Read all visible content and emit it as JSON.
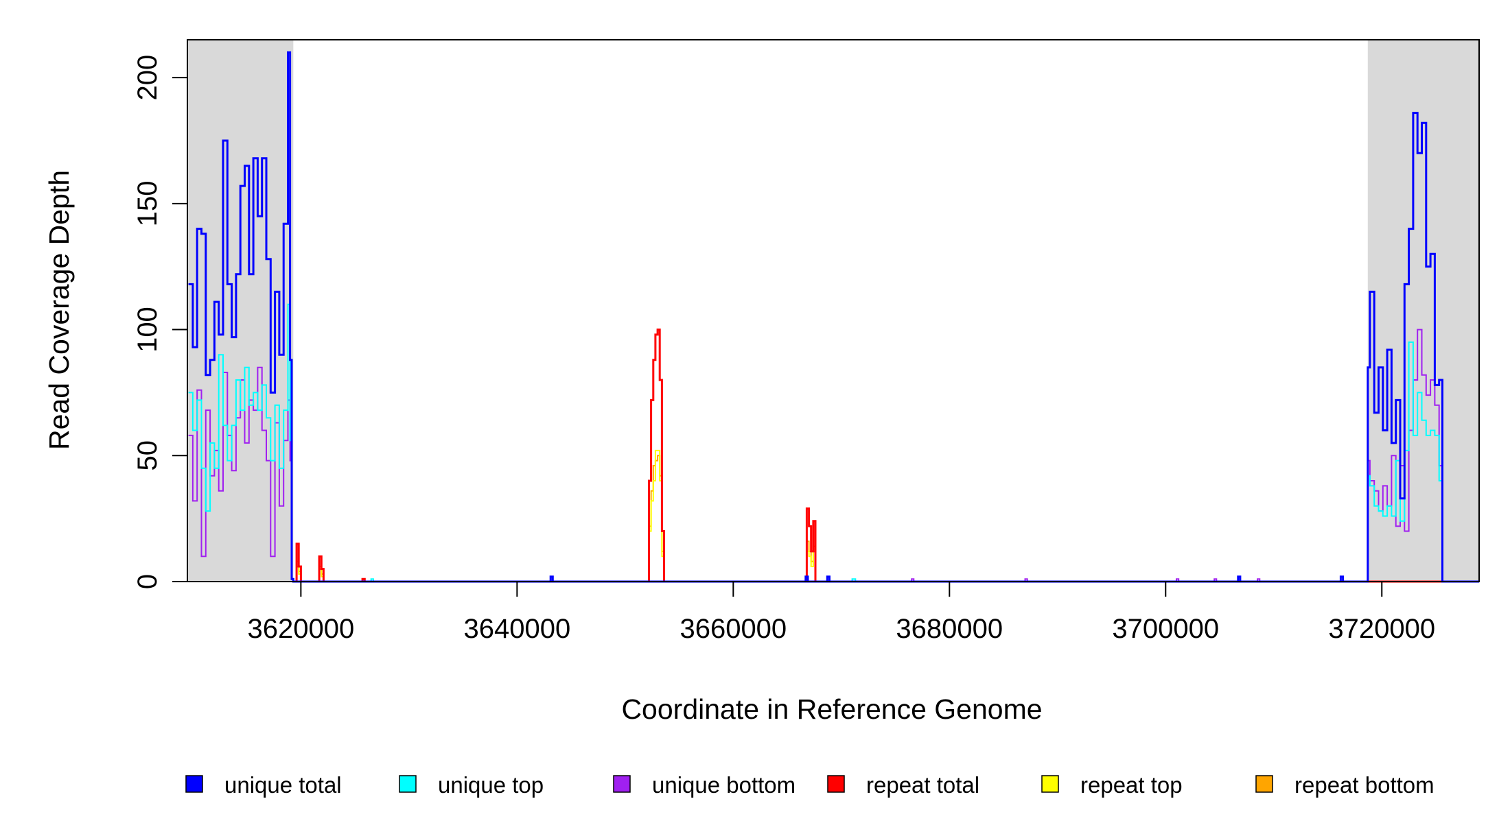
{
  "chart_data": {
    "type": "line",
    "title": "",
    "xlabel": "Coordinate in Reference Genome",
    "ylabel": "Read Coverage Depth",
    "xlim": [
      3609500,
      3729000
    ],
    "ylim": [
      0,
      215
    ],
    "x_ticks": [
      3620000,
      3640000,
      3660000,
      3680000,
      3700000,
      3720000
    ],
    "x_tick_labels": [
      "3620000",
      "3640000",
      "3660000",
      "3680000",
      "3700000",
      "3720000"
    ],
    "y_ticks": [
      0,
      50,
      100,
      150,
      200
    ],
    "y_tick_labels": [
      "0",
      "50",
      "100",
      "150",
      "200"
    ],
    "grid": false,
    "legend_position": "bottom",
    "shaded_regions": [
      {
        "x0": 3609500,
        "x1": 3619300,
        "color": "#d9d9d9"
      },
      {
        "x0": 3718700,
        "x1": 3729000,
        "color": "#d9d9d9"
      }
    ],
    "series": [
      {
        "name": "unique total",
        "color": "#0000ff",
        "x": [
          3609600,
          3610000,
          3610400,
          3610800,
          3611200,
          3611600,
          3612000,
          3612400,
          3612800,
          3613200,
          3613600,
          3614000,
          3614400,
          3614800,
          3615200,
          3615600,
          3616000,
          3616400,
          3616800,
          3617200,
          3617600,
          3618000,
          3618400,
          3618800,
          3619000,
          3619150,
          3619300,
          3620000,
          3630000,
          3642900,
          3643100,
          3643300,
          3652000,
          3666500,
          3666700,
          3666900,
          3668500,
          3668700,
          3668900,
          3690000,
          3706500,
          3706700,
          3706900,
          3716000,
          3716200,
          3716400,
          3718700,
          3718900,
          3719300,
          3719700,
          3720100,
          3720500,
          3720900,
          3721300,
          3721700,
          3722100,
          3722500,
          3722900,
          3723300,
          3723700,
          3724100,
          3724500,
          3724900,
          3725300,
          3725600,
          3725800,
          3726500,
          3729000
        ],
        "values": [
          118,
          93,
          140,
          138,
          82,
          88,
          111,
          98,
          175,
          118,
          97,
          122,
          157,
          165,
          122,
          168,
          145,
          168,
          128,
          75,
          115,
          90,
          142,
          210,
          88,
          1,
          0,
          0,
          0,
          0,
          2,
          0,
          0,
          0,
          2,
          0,
          0,
          2,
          0,
          0,
          0,
          2,
          0,
          0,
          2,
          0,
          85,
          115,
          67,
          85,
          60,
          92,
          55,
          72,
          33,
          118,
          140,
          186,
          170,
          182,
          125,
          130,
          78,
          80,
          0,
          0,
          0,
          0
        ]
      },
      {
        "name": "unique top",
        "color": "#00ffff",
        "x": [
          3609600,
          3610000,
          3610400,
          3610800,
          3611200,
          3611600,
          3612000,
          3612400,
          3612800,
          3613200,
          3613600,
          3614000,
          3614400,
          3614800,
          3615200,
          3615600,
          3616000,
          3616400,
          3616800,
          3617200,
          3617600,
          3618000,
          3618400,
          3618800,
          3619000,
          3619150,
          3619300,
          3626500,
          3626700,
          3671000,
          3671300,
          3718700,
          3718900,
          3719300,
          3719700,
          3720100,
          3720500,
          3720900,
          3721300,
          3721700,
          3722100,
          3722500,
          3722900,
          3723300,
          3723700,
          3724100,
          3724500,
          3724900,
          3725300,
          3725600,
          3725800,
          3729000
        ],
        "values": [
          75,
          60,
          72,
          45,
          28,
          55,
          45,
          90,
          62,
          48,
          62,
          80,
          68,
          85,
          70,
          75,
          68,
          78,
          65,
          48,
          70,
          45,
          68,
          110,
          56,
          1,
          0,
          1,
          0,
          1,
          0,
          42,
          38,
          30,
          28,
          26,
          30,
          26,
          48,
          24,
          52,
          95,
          58,
          75,
          64,
          58,
          60,
          58,
          40,
          0,
          0,
          0
        ]
      },
      {
        "name": "unique bottom",
        "color": "#a020f0",
        "x": [
          3609600,
          3610000,
          3610400,
          3610800,
          3611200,
          3611600,
          3612000,
          3612400,
          3612800,
          3613200,
          3613600,
          3614000,
          3614400,
          3614800,
          3615200,
          3615600,
          3616000,
          3616400,
          3616800,
          3617200,
          3617600,
          3618000,
          3618400,
          3618800,
          3619000,
          3619150,
          3619300,
          3676500,
          3676700,
          3687000,
          3687200,
          3701000,
          3701200,
          3704500,
          3704700,
          3708500,
          3708700,
          3718700,
          3718900,
          3719300,
          3719700,
          3720100,
          3720500,
          3720900,
          3721300,
          3721700,
          3722100,
          3722500,
          3722900,
          3723300,
          3723700,
          3724100,
          3724500,
          3724900,
          3725300,
          3725600,
          3725800,
          3729000
        ],
        "values": [
          58,
          32,
          76,
          10,
          68,
          42,
          52,
          36,
          83,
          58,
          44,
          65,
          80,
          55,
          72,
          68,
          85,
          60,
          48,
          10,
          63,
          30,
          56,
          72,
          48,
          1,
          0,
          1,
          0,
          1,
          0,
          1,
          0,
          1,
          0,
          1,
          0,
          48,
          40,
          36,
          28,
          38,
          30,
          50,
          22,
          46,
          20,
          60,
          80,
          100,
          82,
          74,
          80,
          70,
          46,
          0,
          0,
          0
        ]
      },
      {
        "name": "repeat total",
        "color": "#ff0000",
        "x": [
          3619300,
          3619600,
          3619800,
          3620000,
          3621500,
          3621700,
          3621900,
          3622100,
          3625500,
          3625700,
          3625900,
          3652000,
          3652200,
          3652400,
          3652600,
          3652800,
          3653000,
          3653200,
          3653400,
          3653600,
          3653800,
          3666600,
          3666800,
          3667000,
          3667200,
          3667400,
          3667600,
          3667800,
          3729000
        ],
        "values": [
          0,
          15,
          6,
          0,
          0,
          10,
          5,
          0,
          0,
          1,
          0,
          0,
          40,
          72,
          88,
          98,
          100,
          80,
          20,
          0,
          0,
          0,
          29,
          22,
          12,
          24,
          0,
          0,
          0
        ]
      },
      {
        "name": "repeat top",
        "color": "#ffff00",
        "x": [
          3619300,
          3619600,
          3619800,
          3620000,
          3621500,
          3621700,
          3621900,
          3622100,
          3652000,
          3652200,
          3652400,
          3652600,
          3652800,
          3653000,
          3653200,
          3653400,
          3653600,
          3653800,
          3666600,
          3666800,
          3667000,
          3667200,
          3667400,
          3667600,
          3667800,
          3729000
        ],
        "values": [
          0,
          6,
          3,
          0,
          0,
          5,
          2,
          0,
          0,
          20,
          32,
          40,
          52,
          52,
          40,
          10,
          0,
          0,
          0,
          12,
          10,
          6,
          12,
          0,
          0,
          0
        ]
      },
      {
        "name": "repeat bottom",
        "color": "#ffa500",
        "x": [
          3619300,
          3619600,
          3619800,
          3620000,
          3621500,
          3621700,
          3621900,
          3622100,
          3652000,
          3652200,
          3652400,
          3652600,
          3652800,
          3653000,
          3653200,
          3653400,
          3653600,
          3653800,
          3666600,
          3666800,
          3667000,
          3667200,
          3667400,
          3667600,
          3667800,
          3729000
        ],
        "values": [
          0,
          8,
          4,
          0,
          0,
          6,
          3,
          0,
          0,
          22,
          36,
          46,
          48,
          50,
          42,
          12,
          0,
          0,
          0,
          16,
          12,
          8,
          14,
          0,
          0,
          0
        ]
      }
    ]
  }
}
